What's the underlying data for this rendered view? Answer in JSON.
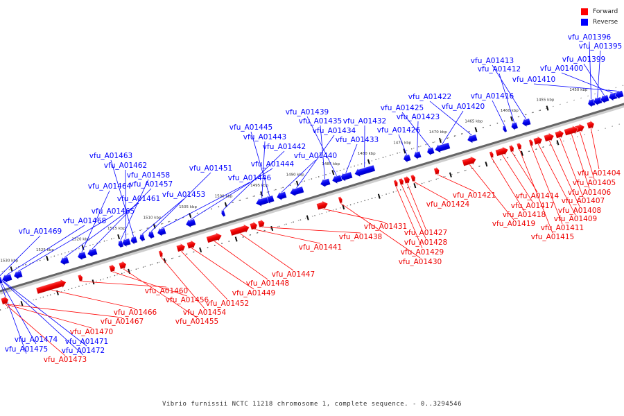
{
  "legend": {
    "forward_label": "Forward",
    "reverse_label": "Reverse",
    "forward_color": "#ff0000",
    "reverse_color": "#0000ff"
  },
  "caption": "Vibrio furnissii NCTC 11218 chromosome 1, complete sequence. - 0..3294546",
  "scale": {
    "ticks": [
      {
        "label": "1455 kbp",
        "kbp": 1455
      },
      {
        "label": "1460 kbp",
        "kbp": 1460
      },
      {
        "label": "1465 kbp",
        "kbp": 1465
      },
      {
        "label": "1470 kbp",
        "kbp": 1470
      },
      {
        "label": "1475 kbp",
        "kbp": 1475
      },
      {
        "label": "1480 kbp",
        "kbp": 1480
      },
      {
        "label": "1485 kbp",
        "kbp": 1485
      },
      {
        "label": "1490 kbp",
        "kbp": 1490
      },
      {
        "label": "1495 kbp",
        "kbp": 1495
      },
      {
        "label": "1500 kbp",
        "kbp": 1500
      },
      {
        "label": "1505 kbp",
        "kbp": 1505
      },
      {
        "label": "1510 kbp",
        "kbp": 1510
      },
      {
        "label": "1515 kbp",
        "kbp": 1515
      },
      {
        "label": "1520 kbp",
        "kbp": 1520
      },
      {
        "label": "1525 kbp",
        "kbp": 1525
      },
      {
        "label": "1530 kbp",
        "kbp": 1530
      }
    ],
    "partial_tick_label": "1450 kbp"
  },
  "reverse_genes": [
    "vfu_A01396",
    "vfu_A01395",
    "vfu_A01399",
    "vfu_A01400",
    "vfu_A01410",
    "vfu_A01413",
    "vfu_A01412",
    "vfu_A01416",
    "vfu_A01422",
    "vfu_A01420",
    "vfu_A01425",
    "vfu_A01423",
    "vfu_A01426",
    "vfu_A01432",
    "vfu_A01433",
    "vfu_A01439",
    "vfu_A01435",
    "vfu_A01434",
    "vfu_A01440",
    "vfu_A01445",
    "vfu_A01443",
    "vfu_A01442",
    "vfu_A01444",
    "vfu_A01446",
    "vfu_A01451",
    "vfu_A01453",
    "vfu_A01463",
    "vfu_A01462",
    "vfu_A01458",
    "vfu_A01457",
    "vfu_A01464",
    "vfu_A01461",
    "vfu_A01465",
    "vfu_A01468",
    "vfu_A01469",
    "vfu_A01474",
    "vfu_A01475",
    "vfu_A01471",
    "vfu_A01472"
  ],
  "forward_genes": [
    "vfu_A01404",
    "vfu_A01405",
    "vfu_A01406",
    "vfu_A01407",
    "vfu_A01408",
    "vfu_A01409",
    "vfu_A01411",
    "vfu_A01415",
    "vfu_A01414",
    "vfu_A01417",
    "vfu_A01418",
    "vfu_A01419",
    "vfu_A01421",
    "vfu_A01424",
    "vfu_A01427",
    "vfu_A01428",
    "vfu_A01429",
    "vfu_A01430",
    "vfu_A01431",
    "vfu_A01438",
    "vfu_A01441",
    "vfu_A01447",
    "vfu_A01448",
    "vfu_A01449",
    "vfu_A01452",
    "vfu_A01454",
    "vfu_A01455",
    "vfu_A01456",
    "vfu_A01460",
    "vfu_A01466",
    "vfu_A01467",
    "vfu_A01470",
    "vfu_A01473"
  ]
}
